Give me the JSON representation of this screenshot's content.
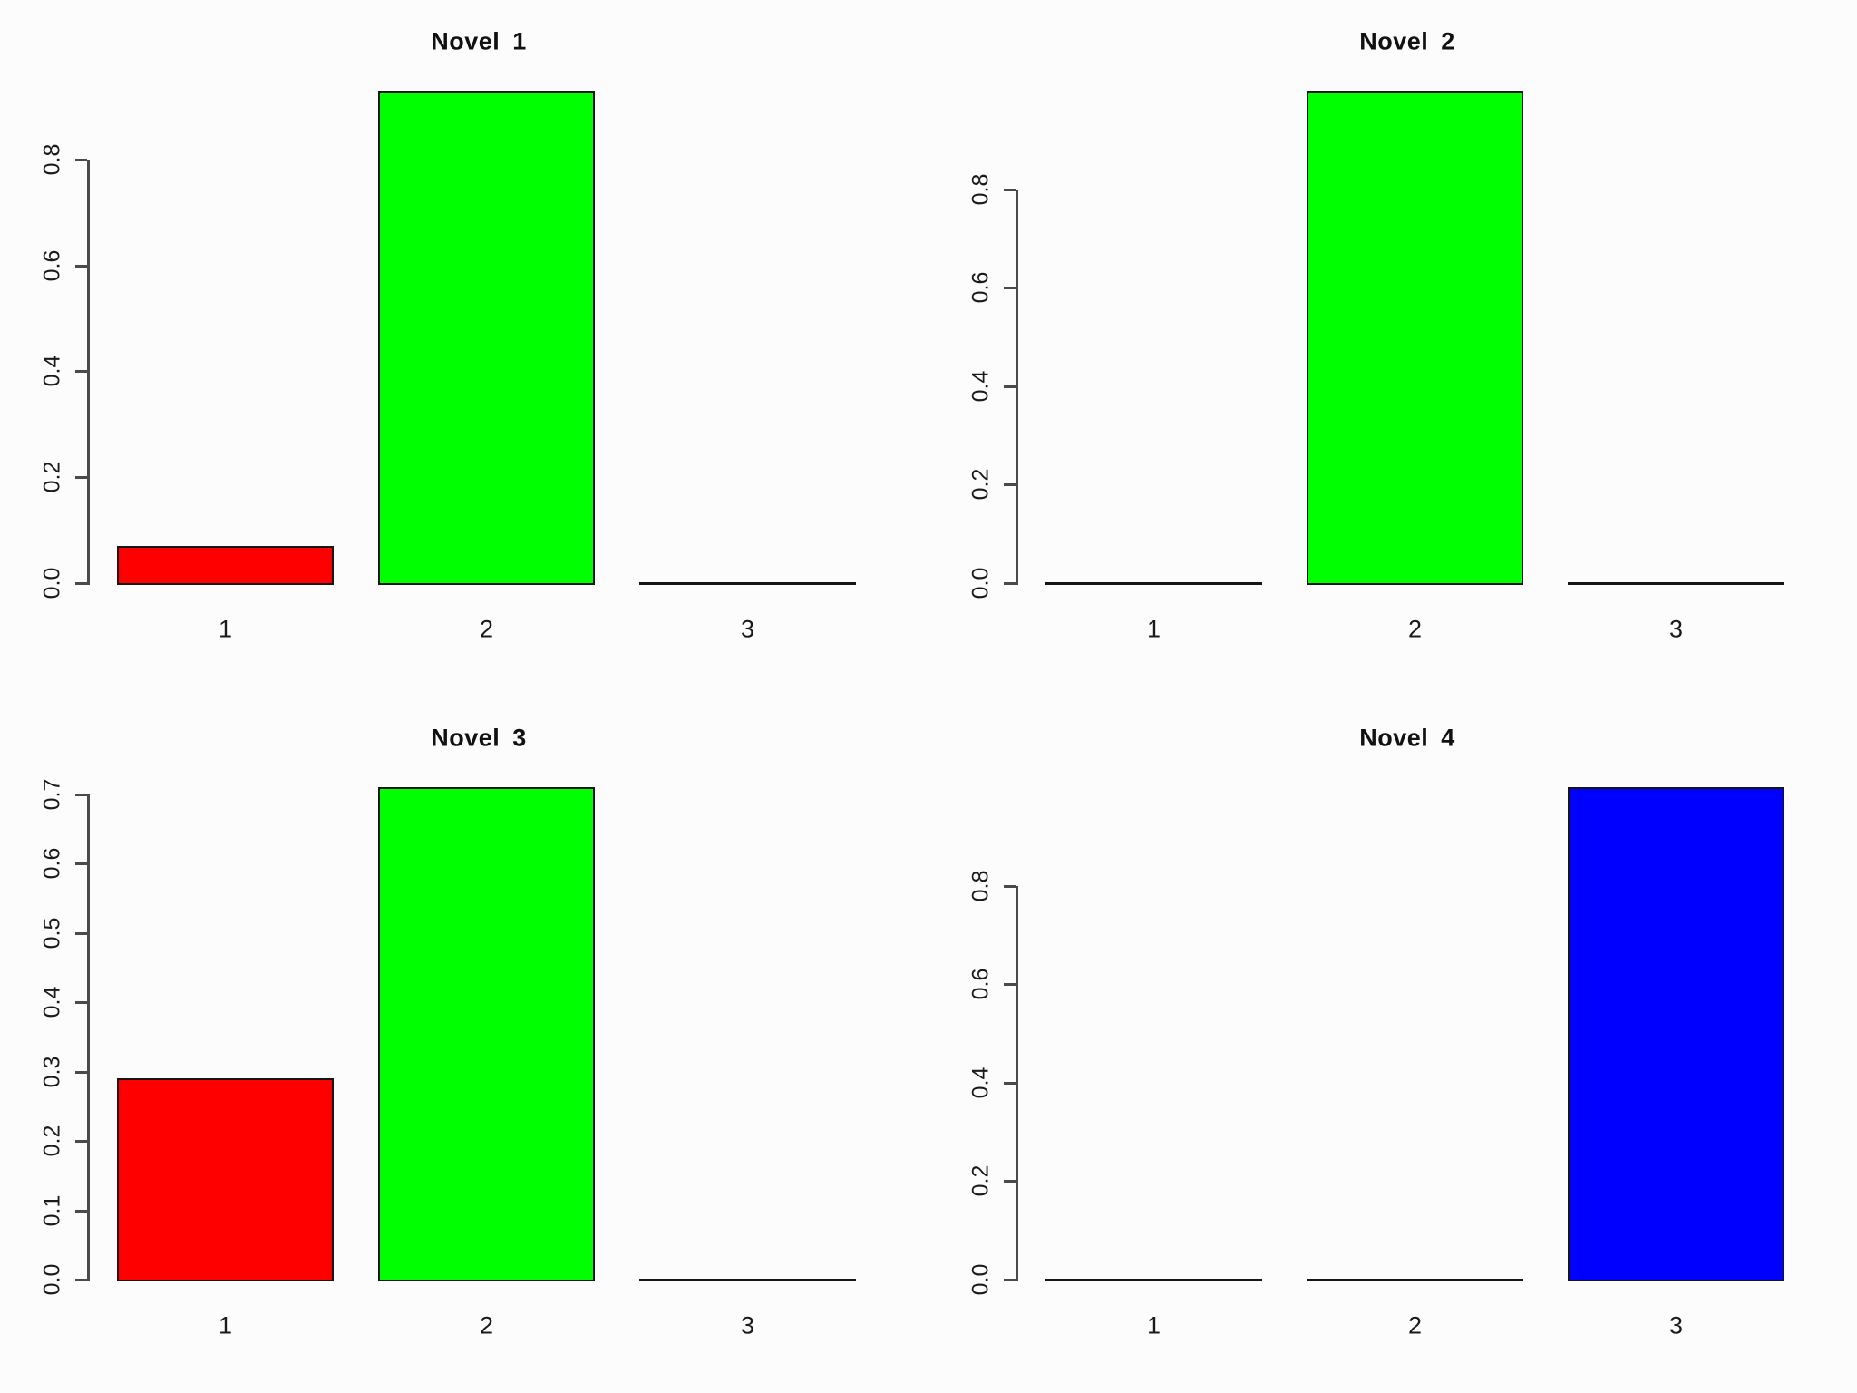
{
  "figure": {
    "background": "#fcfcfc",
    "layout": "2x2 grid of barplots",
    "bar_palette": [
      "#FF0000",
      "#00FF00",
      "#0000FF"
    ],
    "axis_color": "#4a4a4a",
    "bar_border_color": "#151515",
    "text_color": "#1a1a1a"
  },
  "chart_data": [
    {
      "type": "bar",
      "title": "Novel 1",
      "categories": [
        "1",
        "2",
        "3"
      ],
      "values": [
        0.07,
        0.93,
        0
      ],
      "bar_colors": [
        "#FF0000",
        "#00FF00",
        "#0000FF"
      ],
      "yticks": [
        0.0,
        0.2,
        0.4,
        0.6,
        0.8
      ],
      "ytick_labels": [
        "0.0",
        "0.2",
        "0.4",
        "0.6",
        "0.8"
      ],
      "ylim": [
        0,
        0.93
      ],
      "xlabel": "",
      "ylabel": "",
      "grid": false,
      "legend": "none"
    },
    {
      "type": "bar",
      "title": "Novel 2",
      "categories": [
        "1",
        "2",
        "3"
      ],
      "values": [
        0,
        1.0,
        0
      ],
      "bar_colors": [
        "#FF0000",
        "#00FF00",
        "#0000FF"
      ],
      "yticks": [
        0.0,
        0.2,
        0.4,
        0.6,
        0.8
      ],
      "ytick_labels": [
        "0.0",
        "0.2",
        "0.4",
        "0.6",
        "0.8"
      ],
      "ylim": [
        0,
        1.0
      ],
      "xlabel": "",
      "ylabel": "",
      "grid": false,
      "legend": "none"
    },
    {
      "type": "bar",
      "title": "Novel 3",
      "categories": [
        "1",
        "2",
        "3"
      ],
      "values": [
        0.29,
        0.71,
        0
      ],
      "bar_colors": [
        "#FF0000",
        "#00FF00",
        "#0000FF"
      ],
      "yticks": [
        0.0,
        0.1,
        0.2,
        0.3,
        0.4,
        0.5,
        0.6,
        0.7
      ],
      "ytick_labels": [
        "0.0",
        "0.1",
        "0.2",
        "0.3",
        "0.4",
        "0.5",
        "0.6",
        "0.7"
      ],
      "ylim": [
        0,
        0.71
      ],
      "xlabel": "",
      "ylabel": "",
      "grid": false,
      "legend": "none"
    },
    {
      "type": "bar",
      "title": "Novel 4",
      "categories": [
        "1",
        "2",
        "3"
      ],
      "values": [
        0,
        0,
        1.0
      ],
      "bar_colors": [
        "#FF0000",
        "#00FF00",
        "#0000FF"
      ],
      "yticks": [
        0.0,
        0.2,
        0.4,
        0.6,
        0.8
      ],
      "ytick_labels": [
        "0.0",
        "0.2",
        "0.4",
        "0.6",
        "0.8"
      ],
      "ylim": [
        0,
        1.0
      ],
      "xlabel": "",
      "ylabel": "",
      "grid": false,
      "legend": "none"
    }
  ]
}
